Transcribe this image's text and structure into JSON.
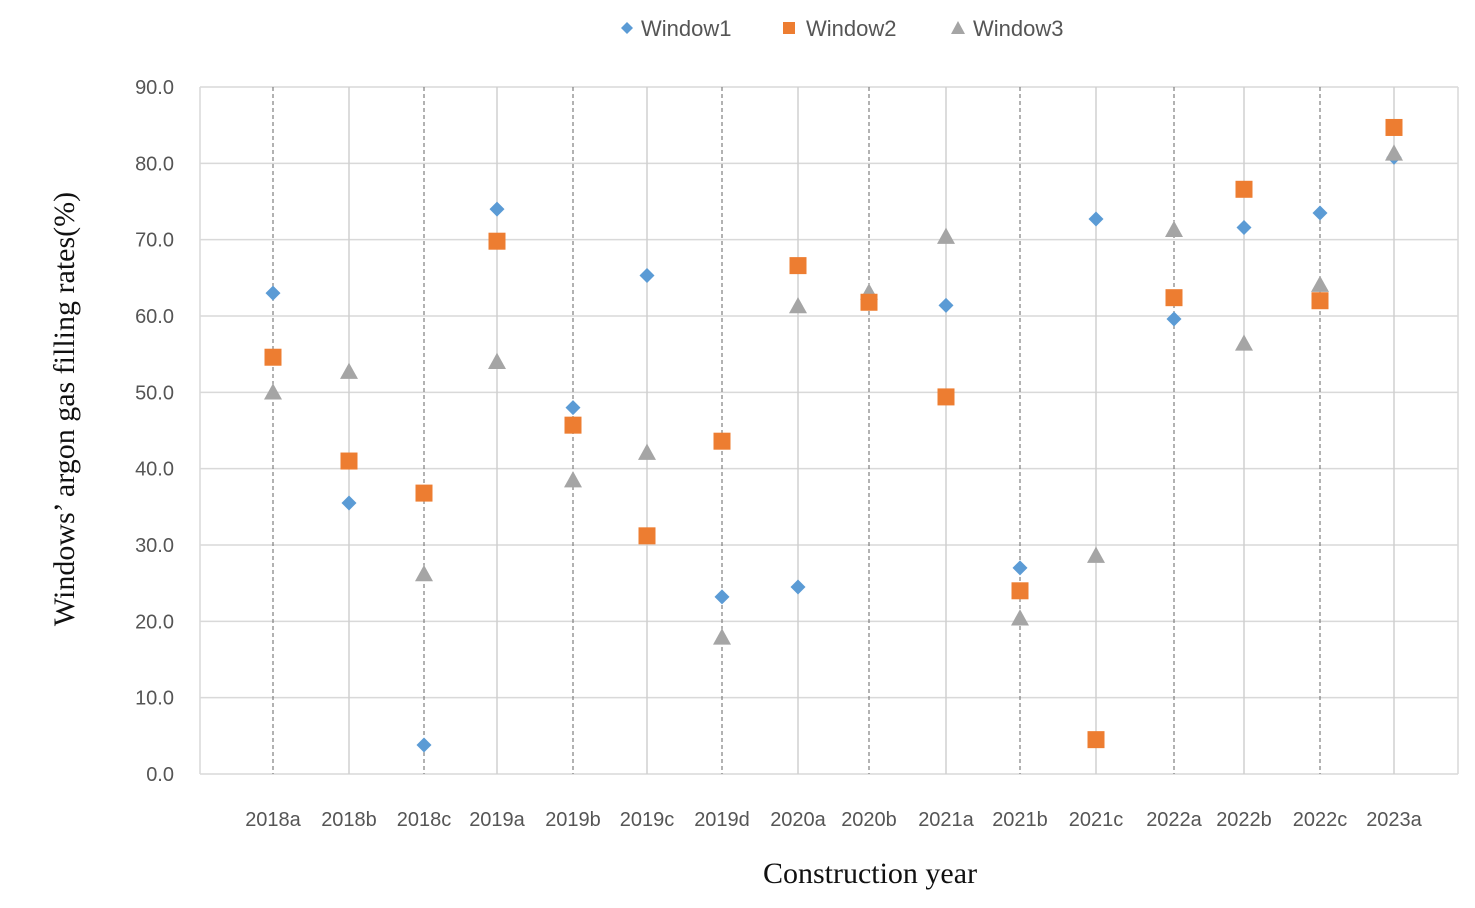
{
  "chart_data": {
    "type": "scatter",
    "title": "",
    "xlabel": "Construction year",
    "ylabel": "Windows’ argon gas filling rates(%)",
    "categories": [
      "2018a",
      "2018b",
      "2018c",
      "2019a",
      "2019b",
      "2019c",
      "2019d",
      "2020a",
      "2020b",
      "2021a",
      "2021b",
      "2021c",
      "2022a",
      "2022b",
      "2022c",
      "2023a"
    ],
    "ylim": [
      0,
      90
    ],
    "yticks": [
      "0.0",
      "10.0",
      "20.0",
      "30.0",
      "40.0",
      "50.0",
      "60.0",
      "70.0",
      "80.0",
      "90.0"
    ],
    "grid": "horizontal major gridlines; dashed vertical separators",
    "legend_position": "top",
    "series": [
      {
        "name": "Window1",
        "marker": "diamond",
        "color": "#5B9BD5",
        "values": [
          63.0,
          35.5,
          3.8,
          74.0,
          48.0,
          65.3,
          23.2,
          24.5,
          null,
          61.4,
          27.0,
          72.7,
          59.6,
          71.6,
          73.5,
          80.8
        ]
      },
      {
        "name": "Window2",
        "marker": "square",
        "color": "#ED7D31",
        "values": [
          54.6,
          41.0,
          36.8,
          69.8,
          45.7,
          31.2,
          43.6,
          66.6,
          61.8,
          49.4,
          24.0,
          4.5,
          62.4,
          76.6,
          62.0,
          84.7
        ]
      },
      {
        "name": "Window3",
        "marker": "triangle",
        "color": "#A5A5A5",
        "values": [
          50.0,
          52.7,
          26.2,
          54.0,
          38.5,
          42.1,
          17.9,
          61.3,
          63.1,
          70.4,
          20.4,
          28.6,
          71.3,
          56.4,
          64.1,
          81.3
        ]
      }
    ]
  }
}
